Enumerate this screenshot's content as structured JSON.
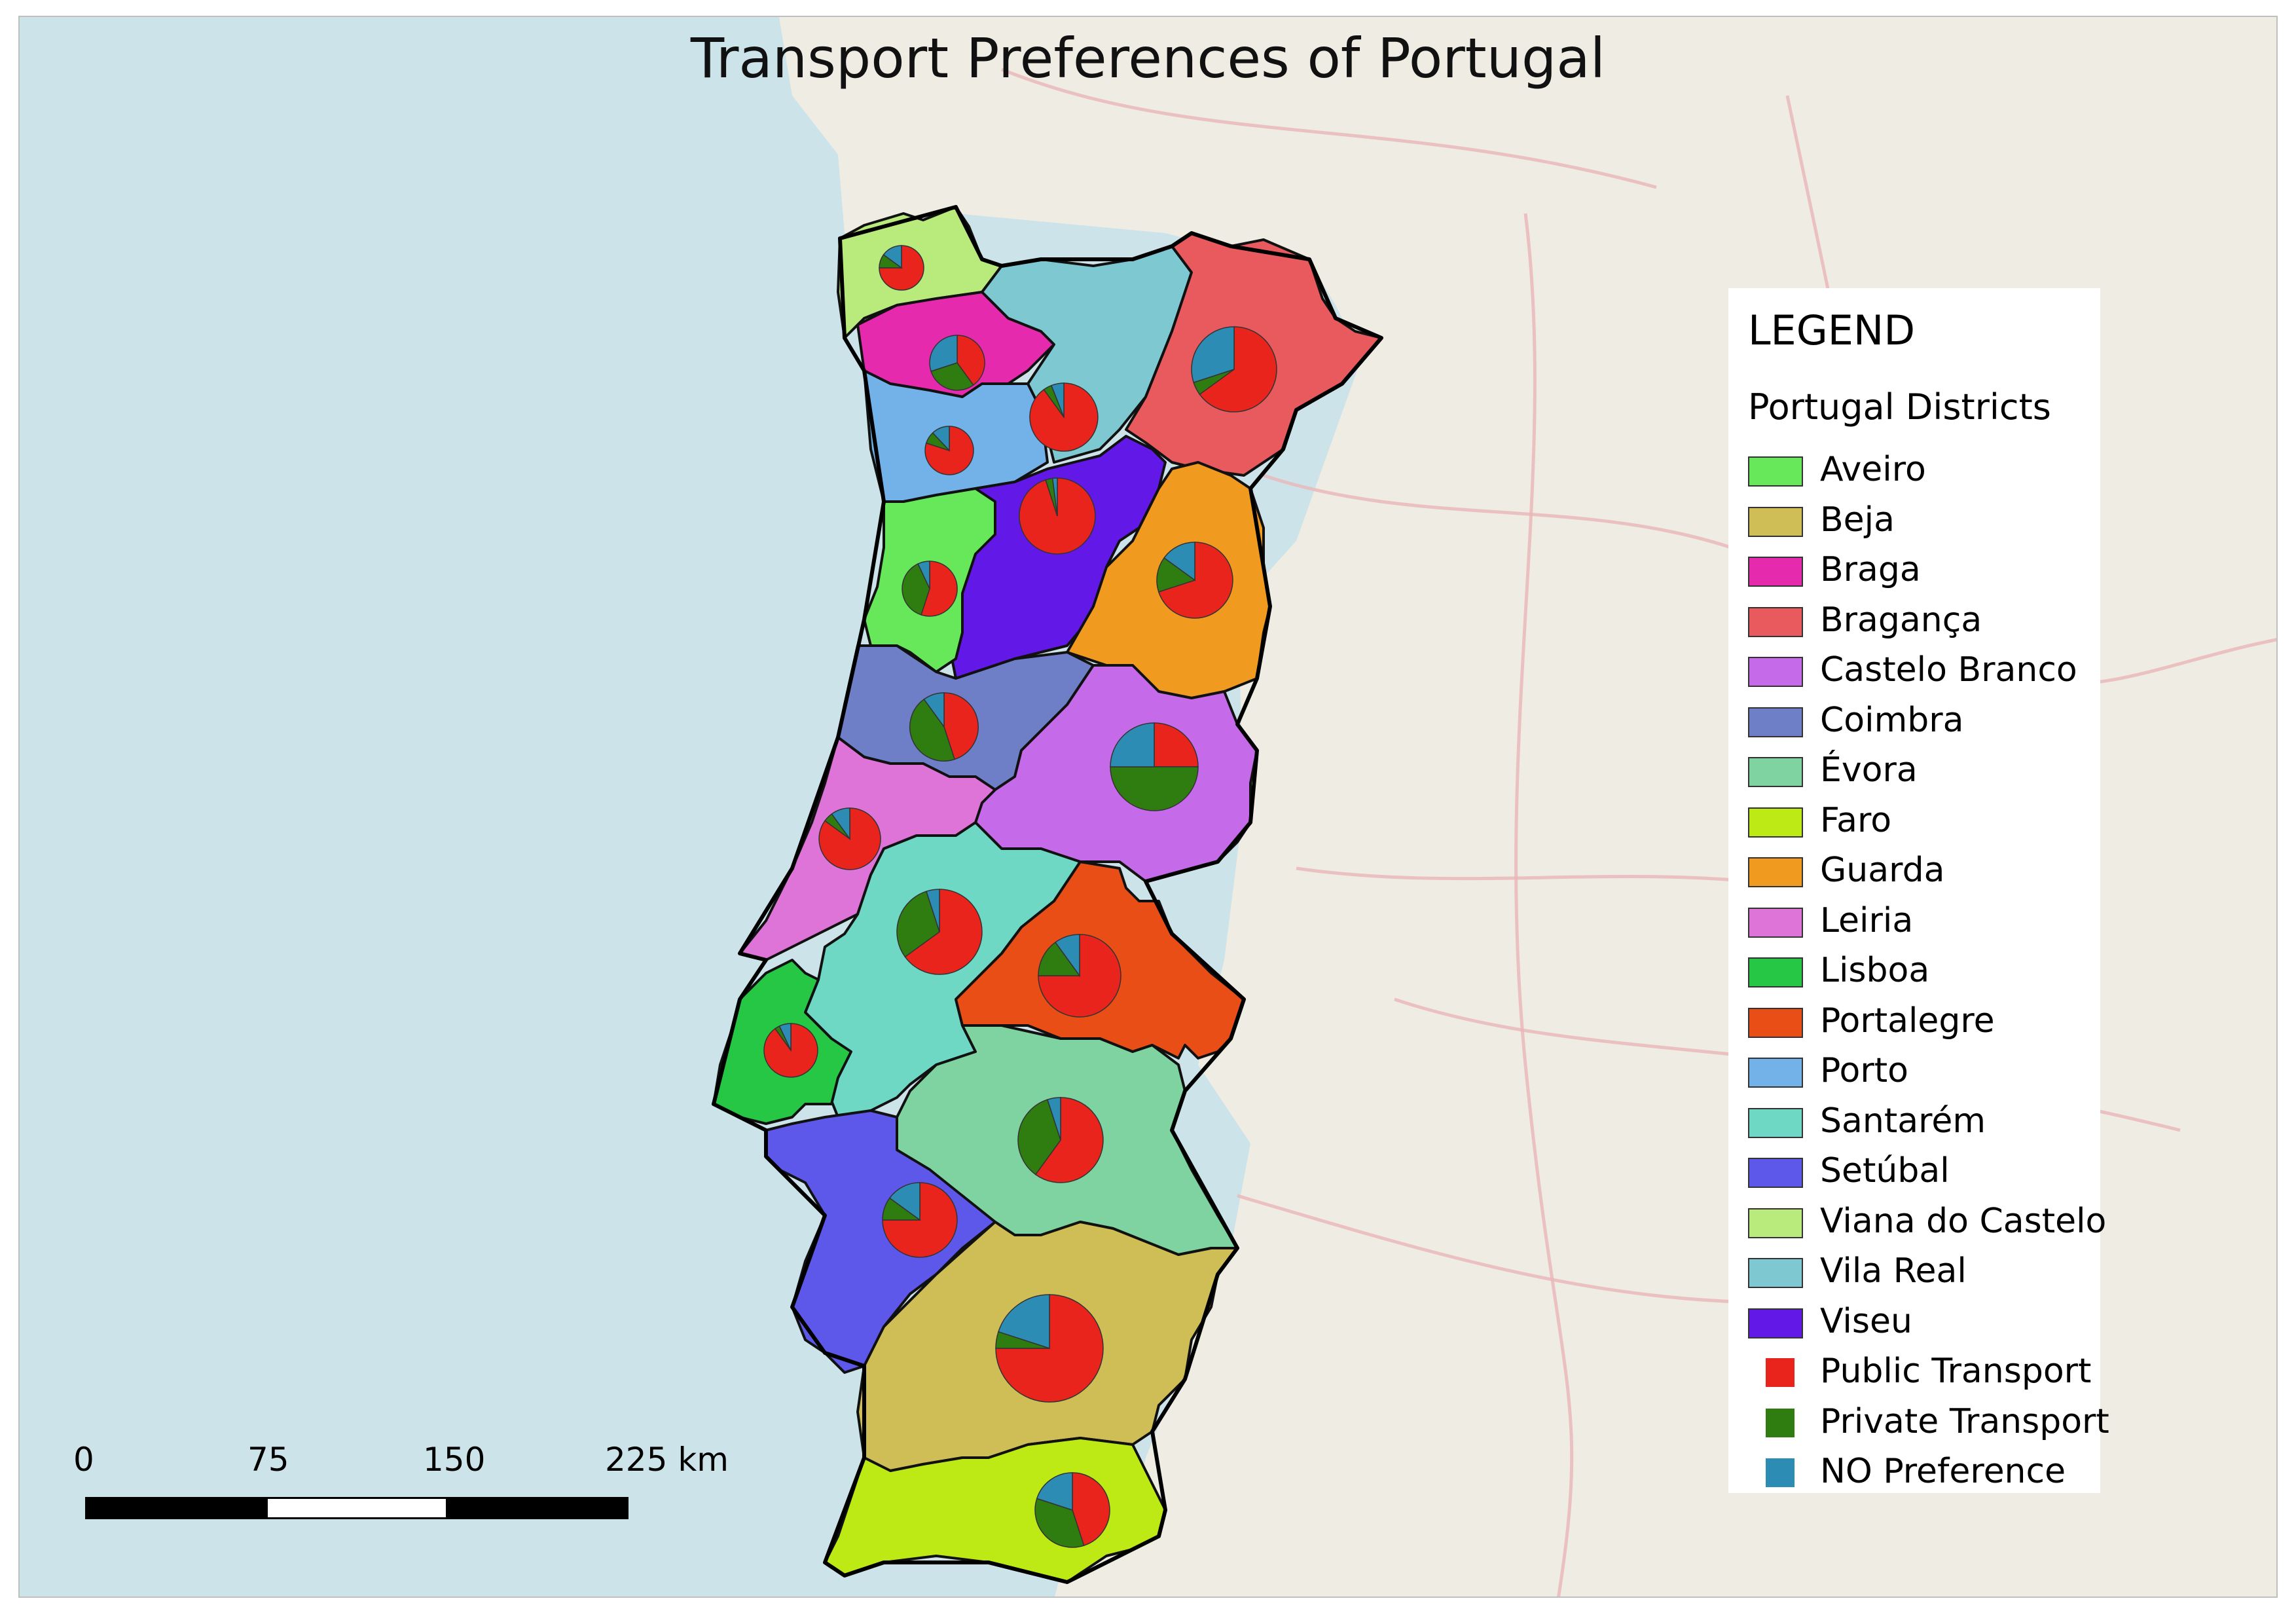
{
  "title": "Transport Preferences of Portugal",
  "colors": {
    "sea": "#cde3ea",
    "land": "#efece4",
    "border": "#111111",
    "public": "#e8241c",
    "private": "#2f7c10",
    "no_preference": "#2c8cb4"
  },
  "legend": {
    "title": "LEGEND",
    "subtitle": "Portugal Districts",
    "districts": [
      {
        "label": "Aveiro",
        "color": "#66e85a"
      },
      {
        "label": "Beja",
        "color": "#cfbe55"
      },
      {
        "label": "Braga",
        "color": "#e62aae"
      },
      {
        "label": "Bragança",
        "color": "#e85a5e"
      },
      {
        "label": "Castelo Branco",
        "color": "#c56ae8"
      },
      {
        "label": "Coimbra",
        "color": "#6e7fc8"
      },
      {
        "label": "Évora",
        "color": "#7ed3a1"
      },
      {
        "label": "Faro",
        "color": "#bdea14"
      },
      {
        "label": "Guarda",
        "color": "#f09b20"
      },
      {
        "label": "Leiria",
        "color": "#de74d8"
      },
      {
        "label": "Lisboa",
        "color": "#26c744"
      },
      {
        "label": "Portalegre",
        "color": "#e84e16"
      },
      {
        "label": "Porto",
        "color": "#72b2e8"
      },
      {
        "label": "Santarém",
        "color": "#6ed8c4"
      },
      {
        "label": "Setúbal",
        "color": "#5e58ea"
      },
      {
        "label": "Viana do Castelo",
        "color": "#b8ea7c"
      },
      {
        "label": "Vila Real",
        "color": "#7ec8d2"
      },
      {
        "label": "Viseu",
        "color": "#6218e6"
      }
    ],
    "transport": [
      {
        "label": "Public Transport",
        "color": "#e8241c"
      },
      {
        "label": "Private Transport",
        "color": "#2f7c10"
      },
      {
        "label": "NO Preference",
        "color": "#2c8cb4"
      }
    ]
  },
  "scale_bar": {
    "labels": [
      "0",
      "75",
      "150",
      "225 km"
    ]
  },
  "pie_data": [
    {
      "district": "Viana do Castelo",
      "public": 0.75,
      "private": 0.1,
      "none": 0.15
    },
    {
      "district": "Braga",
      "public": 0.4,
      "private": 0.3,
      "none": 0.3
    },
    {
      "district": "Vila Real",
      "public": 0.9,
      "private": 0.04,
      "none": 0.06
    },
    {
      "district": "Bragança",
      "public": 0.65,
      "private": 0.05,
      "none": 0.3
    },
    {
      "district": "Porto",
      "public": 0.8,
      "private": 0.08,
      "none": 0.12
    },
    {
      "district": "Viseu",
      "public": 0.95,
      "private": 0.03,
      "none": 0.02
    },
    {
      "district": "Aveiro",
      "public": 0.55,
      "private": 0.38,
      "none": 0.07
    },
    {
      "district": "Guarda",
      "public": 0.7,
      "private": 0.15,
      "none": 0.15
    },
    {
      "district": "Coimbra",
      "public": 0.45,
      "private": 0.45,
      "none": 0.1
    },
    {
      "district": "Castelo Branco",
      "public": 0.25,
      "private": 0.5,
      "none": 0.25
    },
    {
      "district": "Leiria",
      "public": 0.85,
      "private": 0.05,
      "none": 0.1
    },
    {
      "district": "Santarém",
      "public": 0.65,
      "private": 0.3,
      "none": 0.05
    },
    {
      "district": "Portalegre",
      "public": 0.75,
      "private": 0.15,
      "none": 0.1
    },
    {
      "district": "Lisboa",
      "public": 0.9,
      "private": 0.03,
      "none": 0.07
    },
    {
      "district": "Évora",
      "public": 0.6,
      "private": 0.35,
      "none": 0.05
    },
    {
      "district": "Setúbal",
      "public": 0.75,
      "private": 0.1,
      "none": 0.15
    },
    {
      "district": "Beja",
      "public": 0.75,
      "private": 0.05,
      "none": 0.2
    },
    {
      "district": "Faro",
      "public": 0.45,
      "private": 0.35,
      "none": 0.2
    }
  ]
}
